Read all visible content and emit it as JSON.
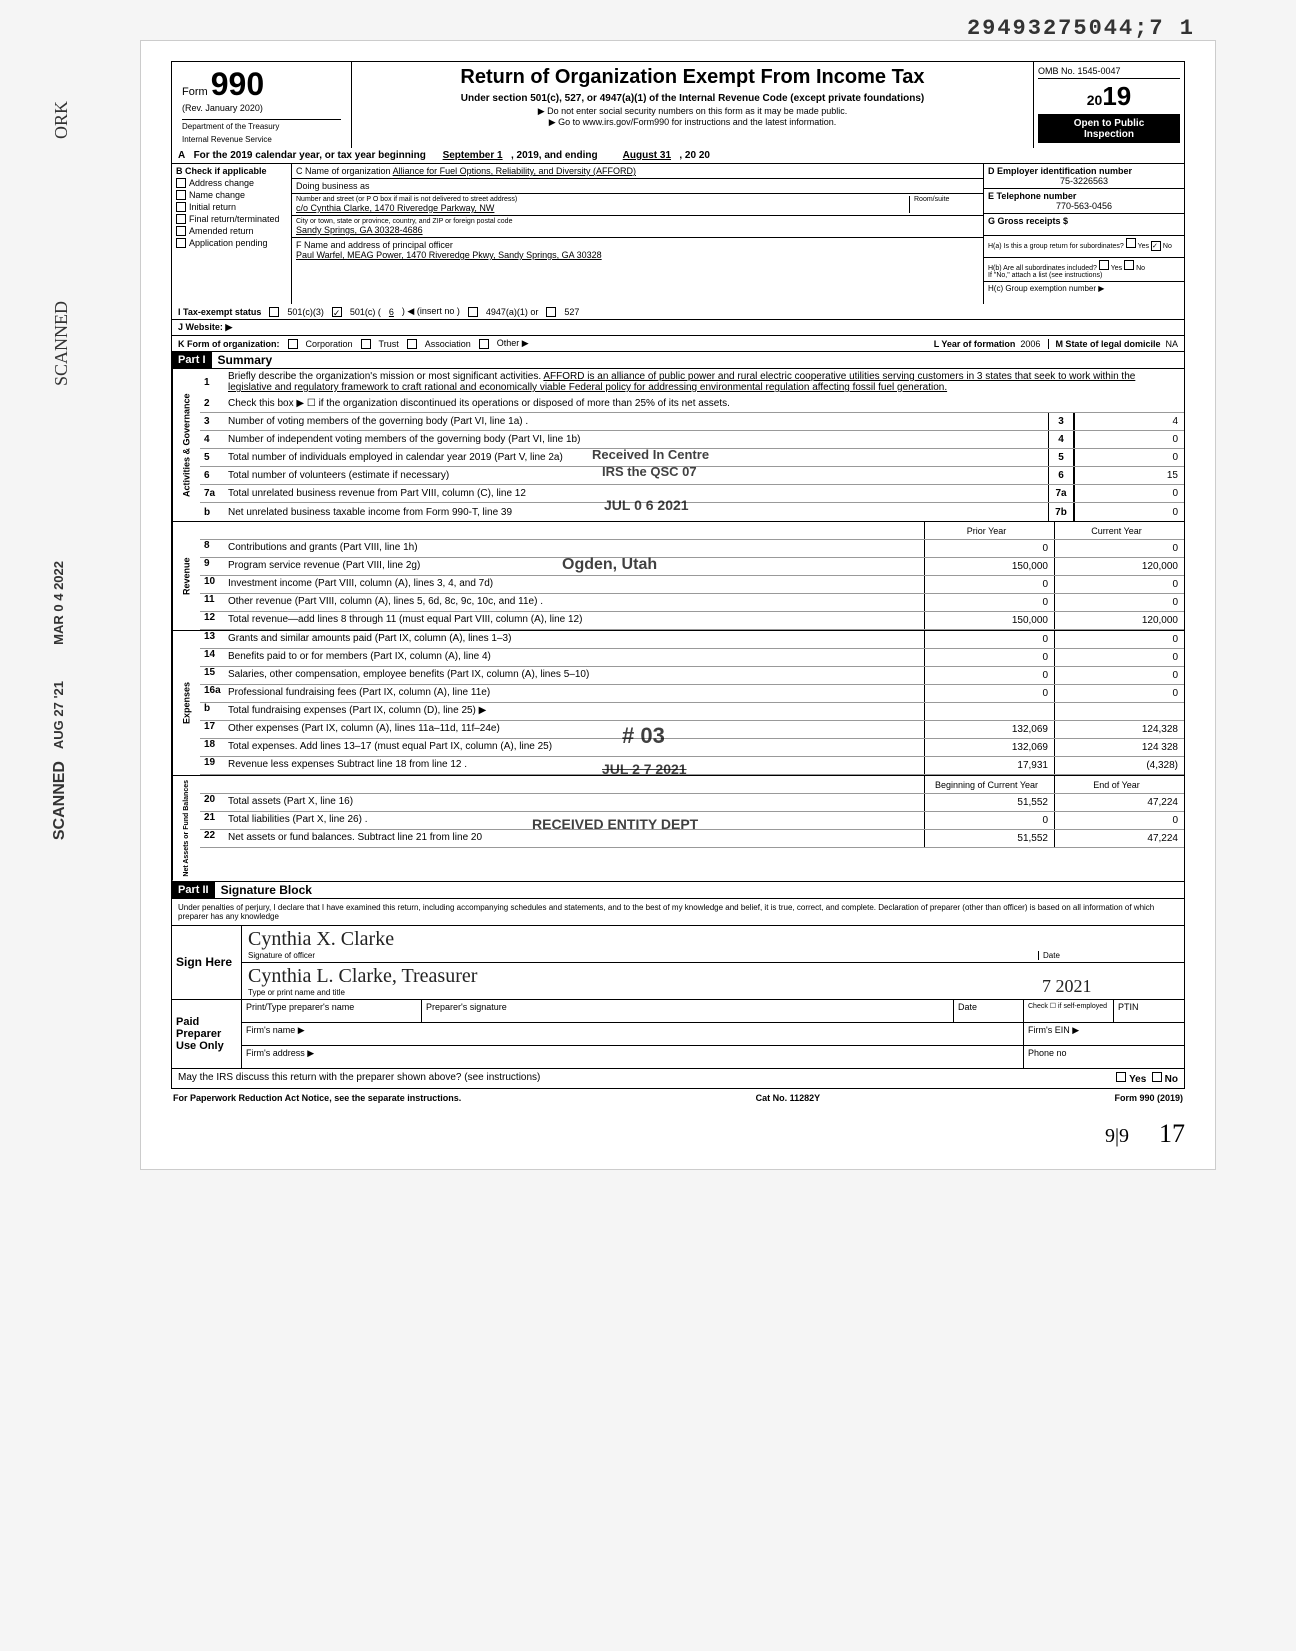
{
  "stamp_top": "29493275044;7  1",
  "header": {
    "form_prefix": "Form",
    "form_number": "990",
    "rev": "(Rev. January 2020)",
    "dept": "Department of the Treasury",
    "irs": "Internal Revenue Service",
    "title": "Return of Organization Exempt From Income Tax",
    "subtitle": "Under section 501(c), 527, or 4947(a)(1) of the Internal Revenue Code (except private foundations)",
    "instr1": "▶ Do not enter social security numbers on this form as it may be made public.",
    "instr2": "▶ Go to www.irs.gov/Form990 for instructions and the latest information.",
    "omb": "OMB No. 1545-0047",
    "year": "2019",
    "open_public_l1": "Open to Public",
    "open_public_l2": "Inspection"
  },
  "row_A": {
    "prefix": "A",
    "text": "For the 2019 calendar year, or tax year beginning",
    "begin": "September 1",
    "year1": ", 2019, and ending",
    "end": "August 31",
    "year2": ", 20  20"
  },
  "col_B": {
    "label": "B   Check if applicable",
    "opts": [
      "Address change",
      "Name change",
      "Initial return",
      "Final return/terminated",
      "Amended return",
      "Application pending"
    ]
  },
  "col_C": {
    "c_label": "C Name of organization",
    "c_name": "Alliance for Fuel Options, Reliability, and Diversity (AFFORD)",
    "dba_label": "Doing business as",
    "dba": "",
    "addr_label": "Number and street (or P O  box if mail is not delivered to street address)",
    "addr": "c/o Cynthia Clarke, 1470 Riveredge Parkway, NW",
    "room_label": "Room/suite",
    "city_label": "City or town, state or province, country, and ZIP or foreign postal code",
    "city": "Sandy Springs, GA 30328-4686",
    "f_label": "F Name and address of principal officer",
    "f_val": "Paul Warfel, MEAG Power, 1470 Riveredge Pkwy, Sandy Springs, GA 30328"
  },
  "col_D": {
    "d_label": "D Employer identification number",
    "d_val": "75-3226563",
    "e_label": "E Telephone number",
    "e_val": "770-563-0456",
    "g_label": "G Gross receipts $",
    "ha_label": "H(a) Is this a group return for subordinates?",
    "ha_yes": "Yes",
    "ha_no": "No",
    "hb_label": "H(b) Are all subordinates included?",
    "hb_yes": "Yes",
    "hb_no": "No",
    "hb_note": "If \"No,\" attach a list (see instructions)",
    "hc_label": "H(c) Group exemption number ▶"
  },
  "row_I": {
    "label": "I       Tax-exempt status",
    "opt1": "501(c)(3)",
    "opt2": "501(c) (",
    "opt2_num": "6",
    "opt2_suffix": ") ◀ (insert no )",
    "opt3": "4947(a)(1) or",
    "opt4": "527"
  },
  "row_J": {
    "label": "J      Website: ▶"
  },
  "row_K": {
    "label": "K     Form of organization:",
    "opts": [
      "Corporation",
      "Trust",
      "Association",
      "Other ▶"
    ],
    "l_label": "L Year of formation",
    "l_val": "2006",
    "m_label": "M State of legal domicile",
    "m_val": "NA"
  },
  "part1": {
    "tag": "Part I",
    "title": "Summary",
    "mission_label": "Briefly describe the organization's mission or most significant activities.",
    "mission": "AFFORD is an alliance of public power and rural electric cooperative utilities serving customers in 3 states that seek to work within the legislative and regulatory framework to craft rational and economically viable Federal policy for addressing environmental regulation affecting fossil fuel generation.",
    "line2": "Check this box ▶ ☐ if the organization discontinued its operations or disposed of more than 25% of its net assets.",
    "sidebar_gov": "Activities & Governance",
    "sidebar_rev": "Revenue",
    "sidebar_exp": "Expenses",
    "sidebar_net": "Net Assets or Fund Balances",
    "lines_gov": [
      {
        "n": "3",
        "d": "Number of voting members of the governing body (Part VI, line 1a) .",
        "box": "3",
        "v": "4"
      },
      {
        "n": "4",
        "d": "Number of independent voting members of the governing body (Part VI, line 1b)",
        "box": "4",
        "v": "0"
      },
      {
        "n": "5",
        "d": "Total number of individuals employed in calendar year 2019 (Part V, line 2a)",
        "box": "5",
        "v": "0"
      },
      {
        "n": "6",
        "d": "Total number of volunteers (estimate if necessary)",
        "box": "6",
        "v": "15"
      },
      {
        "n": "7a",
        "d": "Total unrelated business revenue from Part VIII, column (C), line 12",
        "box": "7a",
        "v": "0"
      },
      {
        "n": "b",
        "d": "Net unrelated business taxable income from Form 990-T, line 39",
        "box": "7b",
        "v": "0"
      }
    ],
    "col_prior": "Prior Year",
    "col_curr": "Current Year",
    "lines_rev": [
      {
        "n": "8",
        "d": "Contributions and grants (Part VIII, line 1h)",
        "p": "0",
        "c": "0"
      },
      {
        "n": "9",
        "d": "Program service revenue (Part VIII, line 2g)",
        "p": "150,000",
        "c": "120,000"
      },
      {
        "n": "10",
        "d": "Investment income (Part VIII, column (A), lines 3, 4, and 7d)",
        "p": "0",
        "c": "0"
      },
      {
        "n": "11",
        "d": "Other revenue (Part VIII, column (A), lines 5, 6d, 8c, 9c, 10c, and 11e) .",
        "p": "0",
        "c": "0"
      },
      {
        "n": "12",
        "d": "Total revenue—add lines 8 through 11 (must equal Part VIII, column (A), line 12)",
        "p": "150,000",
        "c": "120,000"
      }
    ],
    "lines_exp": [
      {
        "n": "13",
        "d": "Grants and similar amounts paid (Part IX, column (A), lines 1–3)",
        "p": "0",
        "c": "0"
      },
      {
        "n": "14",
        "d": "Benefits paid to or for members (Part IX, column (A), line 4)",
        "p": "0",
        "c": "0"
      },
      {
        "n": "15",
        "d": "Salaries, other compensation, employee benefits (Part IX, column (A), lines 5–10)",
        "p": "0",
        "c": "0"
      },
      {
        "n": "16a",
        "d": "Professional fundraising fees (Part IX, column (A), line 11e)",
        "p": "0",
        "c": "0"
      },
      {
        "n": "b",
        "d": "Total fundraising expenses (Part IX, column (D), line 25) ▶",
        "p": "",
        "c": ""
      },
      {
        "n": "17",
        "d": "Other expenses (Part IX, column (A), lines 11a–11d, 11f–24e)",
        "p": "132,069",
        "c": "124,328"
      },
      {
        "n": "18",
        "d": "Total expenses. Add lines 13–17 (must equal Part IX, column (A), line 25)",
        "p": "132,069",
        "c": "124 328"
      },
      {
        "n": "19",
        "d": "Revenue less expenses  Subtract line 18 from line 12  .",
        "p": "17,931",
        "c": "(4,328)"
      }
    ],
    "col_begin": "Beginning of Current Year",
    "col_end": "End of Year",
    "lines_net": [
      {
        "n": "20",
        "d": "Total assets (Part X, line 16)",
        "p": "51,552",
        "c": "47,224"
      },
      {
        "n": "21",
        "d": "Total liabilities (Part X, line 26) .",
        "p": "0",
        "c": "0"
      },
      {
        "n": "22",
        "d": "Net assets or fund balances. Subtract line 21 from line 20",
        "p": "51,552",
        "c": "47,224"
      }
    ]
  },
  "part2": {
    "tag": "Part II",
    "title": "Signature Block",
    "declaration": "Under penalties of perjury, I declare that I have examined this return, including accompanying schedules and statements, and to the best of my knowledge and belief, it is true, correct, and complete. Declaration of preparer (other than officer) is based on all information of which preparer has any knowledge",
    "sign_here": "Sign Here",
    "sig_label": "Signature of officer",
    "sig_val": "Cynthia X. Clarke",
    "date_label": "Date",
    "name_label": "Type or print name and title",
    "name_val": "Cynthia L. Clarke, Treasurer",
    "date_val": "7  2021",
    "paid": "Paid Preparer Use Only",
    "prep_name_label": "Print/Type preparer's name",
    "prep_sig_label": "Preparer's signature",
    "prep_date_label": "Date",
    "check_if": "Check ☐ if self-employed",
    "ptin": "PTIN",
    "firm_name": "Firm's name    ▶",
    "firm_ein": "Firm's EIN ▶",
    "firm_addr": "Firm's address ▶",
    "phone": "Phone no",
    "discuss": "May the IRS discuss this return with the preparer shown above? (see instructions)",
    "yes": "Yes",
    "no": "No"
  },
  "footer": {
    "left": "For Paperwork Reduction Act Notice, see the separate instructions.",
    "mid": "Cat No. 11282Y",
    "right": "Form 990 (2019)"
  },
  "stamps": {
    "received": "Received In Centre",
    "irs": "IRS the QSC  07",
    "jul1": "JUL  0 6 2021",
    "ogden": "Ogden, Utah",
    "jul2": "JUL  2 7 2021",
    "recv_entity": "RECEIVED   ENTITY DEPT",
    "hash": "#  03",
    "page_br": "9|9",
    "page_br2": "17"
  },
  "margin": {
    "scanned1": "SCANNED",
    "scanned2": "SCANNED",
    "date1": "MAR 0 4 2022",
    "date2": "AUG 27 '21"
  }
}
